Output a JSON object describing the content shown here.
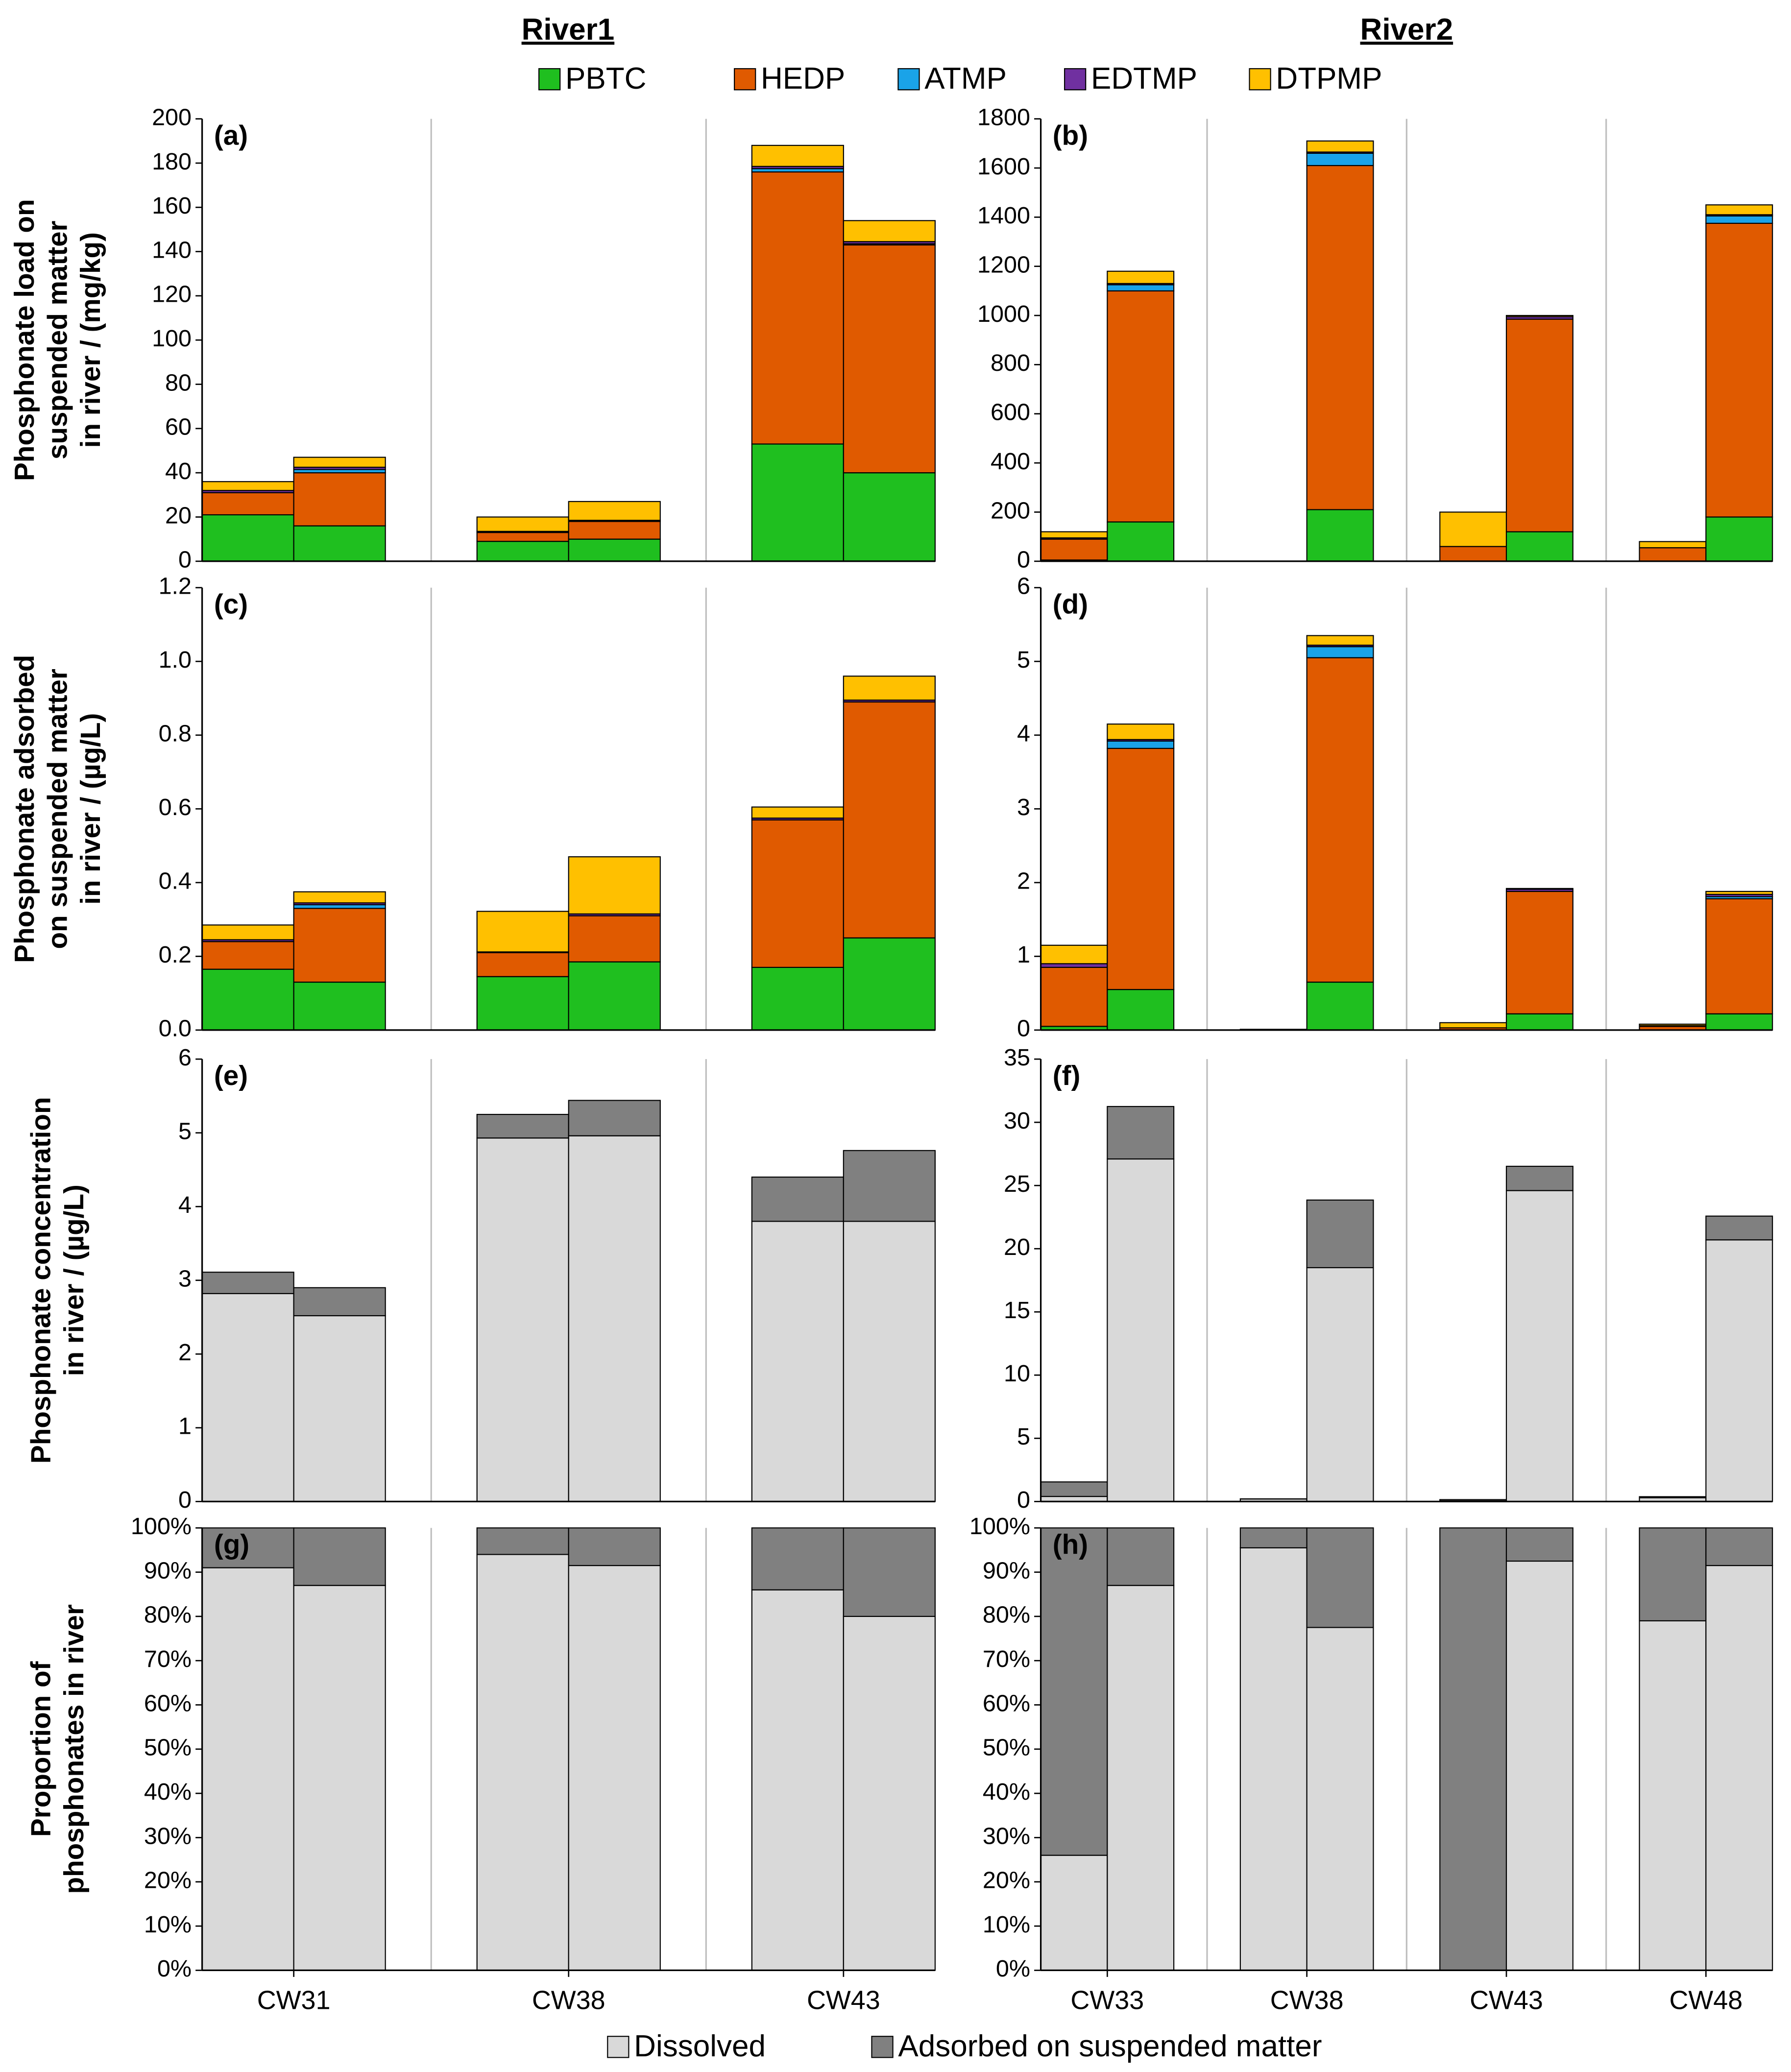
{
  "column_titles": [
    "River1",
    "River2"
  ],
  "chart_data": [
    {
      "type": "bar",
      "panel": "(a)",
      "stacked": true,
      "ylabel": [
        "Phosphonate load on",
        "suspended matter",
        "in river / (mg/kg)"
      ],
      "ylim": [
        0,
        200
      ],
      "yticks": [
        0,
        20,
        40,
        60,
        80,
        100,
        120,
        140,
        160,
        180,
        200
      ],
      "series": [
        {
          "name": "PBTC",
          "color": "#1fbf1f",
          "values": [
            21,
            16,
            9,
            10,
            53,
            40
          ]
        },
        {
          "name": "HEDP",
          "color": "#e05a00",
          "values": [
            10,
            24,
            4,
            8,
            123,
            103
          ]
        },
        {
          "name": "ATMP",
          "color": "#1aa3e8",
          "values": [
            0,
            1.5,
            0,
            0,
            1.5,
            0.5
          ]
        },
        {
          "name": "EDTMP",
          "color": "#7030a0",
          "values": [
            1,
            1,
            0.5,
            0.5,
            1,
            1
          ]
        },
        {
          "name": "DTPMP",
          "color": "#ffc000",
          "values": [
            4,
            4.5,
            6.5,
            8.5,
            9.5,
            9.5
          ]
        }
      ]
    },
    {
      "type": "bar",
      "panel": "(b)",
      "stacked": true,
      "ylim": [
        0,
        1800
      ],
      "yticks": [
        0,
        200,
        400,
        600,
        800,
        1000,
        1200,
        1400,
        1600,
        1800
      ],
      "series": [
        {
          "name": "PBTC",
          "color": "#1fbf1f",
          "values": [
            5,
            160,
            0,
            210,
            0,
            120,
            0,
            180
          ]
        },
        {
          "name": "HEDP",
          "color": "#e05a00",
          "values": [
            85,
            940,
            0,
            1400,
            60,
            865,
            55,
            1195
          ]
        },
        {
          "name": "ATMP",
          "color": "#1aa3e8",
          "values": [
            0,
            25,
            0,
            50,
            0,
            0,
            0,
            30
          ]
        },
        {
          "name": "EDTMP",
          "color": "#7030a0",
          "values": [
            5,
            5,
            0,
            5,
            0,
            10,
            0,
            5
          ]
        },
        {
          "name": "DTPMP",
          "color": "#ffc000",
          "values": [
            25,
            50,
            0,
            45,
            140,
            5,
            25,
            40
          ]
        }
      ]
    },
    {
      "type": "bar",
      "panel": "(c)",
      "stacked": true,
      "ylabel": [
        "Phosphonate adsorbed",
        "on suspended matter",
        "in river / (µg/L)"
      ],
      "ylim": [
        0,
        1.2
      ],
      "yticks": [
        {
          "value": 0,
          "label": "0.0"
        },
        0.2,
        0.4,
        0.6,
        0.8,
        {
          "value": 1,
          "label": "1.0"
        },
        1.2
      ],
      "series": [
        {
          "name": "PBTC",
          "color": "#1fbf1f",
          "values": [
            0.165,
            0.13,
            0.145,
            0.185,
            0.17,
            0.25
          ]
        },
        {
          "name": "HEDP",
          "color": "#e05a00",
          "values": [
            0.075,
            0.2,
            0.065,
            0.125,
            0.4,
            0.64
          ]
        },
        {
          "name": "ATMP",
          "color": "#1aa3e8",
          "values": [
            0,
            0.01,
            0,
            0,
            0,
            0
          ]
        },
        {
          "name": "EDTMP",
          "color": "#7030a0",
          "values": [
            0.005,
            0.005,
            0.002,
            0.005,
            0.005,
            0.005
          ]
        },
        {
          "name": "DTPMP",
          "color": "#ffc000",
          "values": [
            0.04,
            0.03,
            0.11,
            0.155,
            0.03,
            0.065
          ]
        }
      ]
    },
    {
      "type": "bar",
      "panel": "(d)",
      "stacked": true,
      "ylim": [
        0,
        6
      ],
      "yticks": [
        0,
        1,
        2,
        3,
        4,
        5,
        6
      ],
      "series": [
        {
          "name": "PBTC",
          "color": "#1fbf1f",
          "values": [
            0.05,
            0.55,
            0.01,
            0.65,
            0,
            0.22,
            0,
            0.22
          ]
        },
        {
          "name": "HEDP",
          "color": "#e05a00",
          "values": [
            0.8,
            3.27,
            0,
            4.4,
            0.03,
            1.66,
            0.05,
            1.56
          ]
        },
        {
          "name": "ATMP",
          "color": "#1aa3e8",
          "values": [
            0,
            0.1,
            0,
            0.15,
            0,
            0,
            0,
            0.03
          ]
        },
        {
          "name": "EDTMP",
          "color": "#7030a0",
          "values": [
            0.05,
            0.02,
            0,
            0.02,
            0,
            0.03,
            0.01,
            0.03
          ]
        },
        {
          "name": "DTPMP",
          "color": "#ffc000",
          "values": [
            0.25,
            0.21,
            0,
            0.13,
            0.07,
            0.01,
            0.02,
            0.04
          ]
        }
      ]
    },
    {
      "type": "bar",
      "panel": "(e)",
      "stacked": true,
      "ylabel": [
        "Phosphonate concentration",
        "in river / (µg/L)"
      ],
      "ylim": [
        0,
        6
      ],
      "yticks": [
        0,
        1,
        2,
        3,
        4,
        5,
        6
      ],
      "series": [
        {
          "name": "Dissolved",
          "color": "#d9d9d9",
          "values": [
            2.82,
            2.52,
            4.93,
            4.96,
            3.8,
            3.8
          ]
        },
        {
          "name": "Adsorbed on suspended matter",
          "color": "#808080",
          "values": [
            0.29,
            0.38,
            0.32,
            0.48,
            0.6,
            0.96
          ]
        }
      ]
    },
    {
      "type": "bar",
      "panel": "(f)",
      "stacked": true,
      "ylim": [
        0,
        35
      ],
      "yticks": [
        0,
        5,
        10,
        15,
        20,
        25,
        30,
        35
      ],
      "series": [
        {
          "name": "Dissolved",
          "color": "#d9d9d9",
          "values": [
            0.4,
            27.1,
            0.2,
            18.5,
            0.05,
            24.6,
            0.3,
            20.7
          ]
        },
        {
          "name": "Adsorbed on suspended matter",
          "color": "#808080",
          "values": [
            1.15,
            4.15,
            0.01,
            5.35,
            0.1,
            1.92,
            0.08,
            1.88
          ]
        }
      ]
    },
    {
      "type": "bar",
      "panel": "(g)",
      "stacked": true,
      "ylabel": [
        "Proportion of",
        "phosphonates in river"
      ],
      "groups": [
        "CW31",
        "CW38",
        "CW43"
      ],
      "ylim": [
        0,
        100
      ],
      "yticks": [
        {
          "value": 0,
          "label": "0%"
        },
        {
          "value": 10,
          "label": "10%"
        },
        {
          "value": 20,
          "label": "20%"
        },
        {
          "value": 30,
          "label": "30%"
        },
        {
          "value": 40,
          "label": "40%"
        },
        {
          "value": 50,
          "label": "50%"
        },
        {
          "value": 60,
          "label": "60%"
        },
        {
          "value": 70,
          "label": "70%"
        },
        {
          "value": 80,
          "label": "80%"
        },
        {
          "value": 90,
          "label": "90%"
        },
        {
          "value": 100,
          "label": "100%"
        }
      ],
      "series": [
        {
          "name": "Dissolved",
          "color": "#d9d9d9",
          "values": [
            91,
            87,
            94,
            91.5,
            86,
            80
          ]
        },
        {
          "name": "Adsorbed on suspended matter",
          "color": "#808080",
          "values": [
            9,
            13,
            6,
            8.5,
            14,
            20
          ]
        }
      ]
    },
    {
      "type": "bar",
      "panel": "(h)",
      "stacked": true,
      "groups": [
        "CW33",
        "CW38",
        "CW43",
        "CW48"
      ],
      "ylim": [
        0,
        100
      ],
      "yticks": [
        {
          "value": 0,
          "label": "0%"
        },
        {
          "value": 10,
          "label": "10%"
        },
        {
          "value": 20,
          "label": "20%"
        },
        {
          "value": 30,
          "label": "30%"
        },
        {
          "value": 40,
          "label": "40%"
        },
        {
          "value": 50,
          "label": "50%"
        },
        {
          "value": 60,
          "label": "60%"
        },
        {
          "value": 70,
          "label": "70%"
        },
        {
          "value": 80,
          "label": "80%"
        },
        {
          "value": 90,
          "label": "90%"
        },
        {
          "value": 100,
          "label": "100%"
        }
      ],
      "series": [
        {
          "name": "Dissolved",
          "color": "#d9d9d9",
          "values": [
            26,
            87,
            95.5,
            77.5,
            0,
            92.5,
            79,
            91.5
          ]
        },
        {
          "name": "Adsorbed on suspended matter",
          "color": "#808080",
          "values": [
            74,
            13,
            4.5,
            22.5,
            100,
            7.5,
            21,
            8.5
          ]
        }
      ]
    }
  ]
}
